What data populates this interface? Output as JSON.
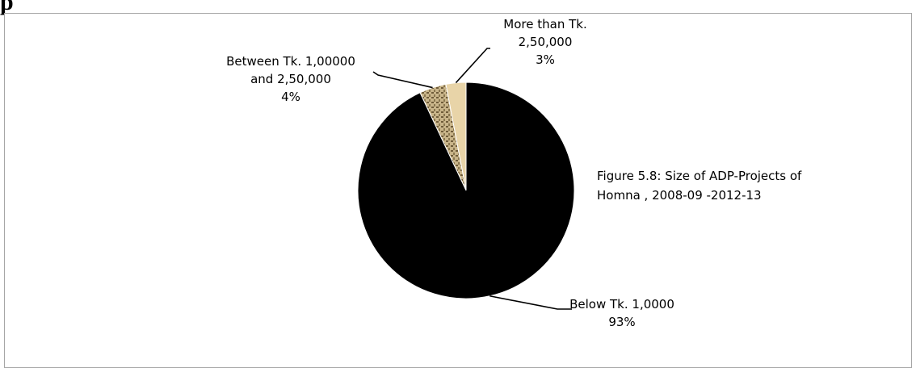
{
  "page": {
    "heading": "p"
  },
  "chart_data": {
    "type": "pie",
    "title": "Figure 5.8: Size of ADP-Projects of Homna , 2008-09 -2012-13",
    "slices": [
      {
        "label": "More than Tk. 2,50,000",
        "value": 3,
        "value_label": "3%",
        "color": "#e8d4a8",
        "label_lines": [
          "More than Tk.",
          "2,50,000",
          "3%"
        ]
      },
      {
        "label": "Between Tk. 1,00000 and 2,50,000",
        "value": 4,
        "value_label": "4%",
        "color": "#c9b58a",
        "label_lines": [
          "Between Tk. 1,00000",
          "and 2,50,000",
          "4%"
        ]
      },
      {
        "label": "Below Tk. 1,0000",
        "value": 93,
        "value_label": "93%",
        "color": "#000000",
        "label_lines": [
          "Below Tk. 1,0000",
          "93%"
        ]
      }
    ],
    "caption_lines": [
      "Figure 5.8: Size of ADP-Projects of",
      "Homna , 2008-09 -2012-13"
    ]
  }
}
